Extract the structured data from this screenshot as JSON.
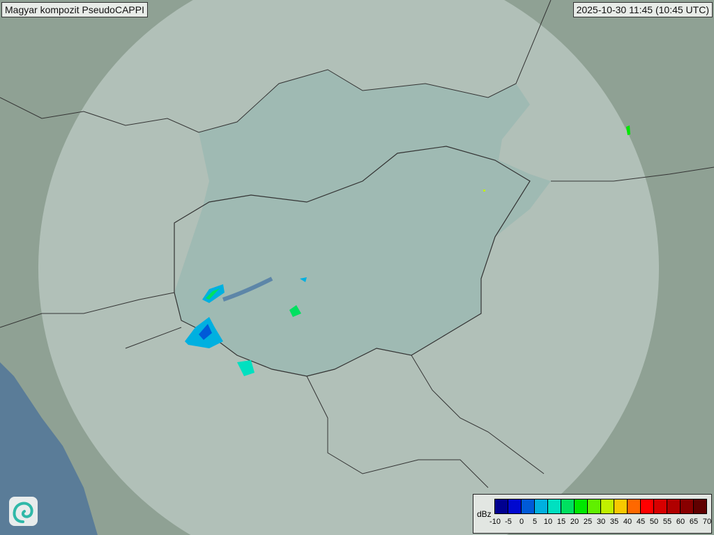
{
  "title": "Magyar kompozit  PseudoCAPPI",
  "timestamp": "2025-10-30 11:45 (10:45 UTC)",
  "legend": {
    "unit": "dBz",
    "ticks": [
      "-10",
      "-5",
      "0",
      "5",
      "10",
      "15",
      "20",
      "25",
      "30",
      "35",
      "40",
      "45",
      "50",
      "55",
      "60",
      "65",
      "70"
    ],
    "colors": [
      "#000090",
      "#0008d0",
      "#005ad8",
      "#00b0e0",
      "#00e0c0",
      "#00e060",
      "#00e800",
      "#60f000",
      "#c0f000",
      "#f8c800",
      "#ff6800",
      "#ff0000",
      "#d80000",
      "#b00000",
      "#880000",
      "#600000"
    ]
  },
  "logo": "omsz-swirl-logo",
  "map_colors": {
    "background": "#8a9c8f",
    "coverage": "#c9d6d2",
    "hungary": "#8fb0ab",
    "sea": "#5a7c98"
  }
}
